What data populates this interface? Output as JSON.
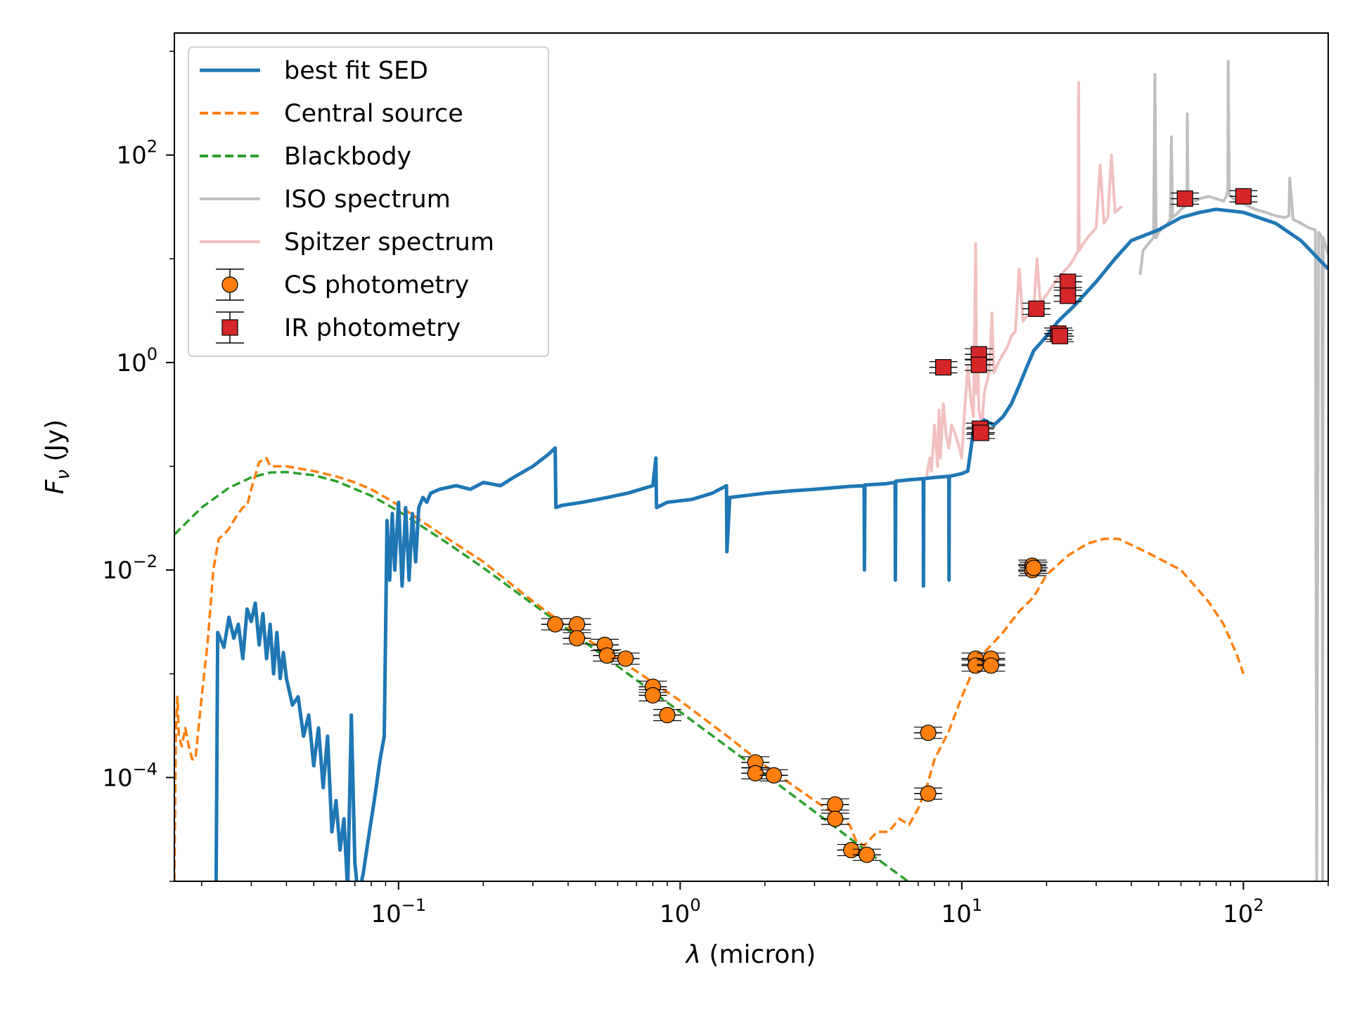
{
  "chart_data": {
    "type": "line",
    "title": "",
    "xlabel_symbol": "λ",
    "xlabel_text": " (micron)",
    "ylabel_symbol": "F",
    "ylabel_sub": "ν",
    "ylabel_text": " (Jy)",
    "xscale": "log",
    "yscale": "log",
    "xlim": [
      0.016,
      200
    ],
    "ylim": [
      1e-05,
      1500
    ],
    "x_ticks": [
      {
        "value": 0.1,
        "base": "10",
        "exp": "−1"
      },
      {
        "value": 1,
        "base": "10",
        "exp": "0"
      },
      {
        "value": 10,
        "base": "10",
        "exp": "1"
      },
      {
        "value": 100,
        "base": "10",
        "exp": "2"
      }
    ],
    "y_ticks": [
      {
        "value": 0.0001,
        "base": "10",
        "exp": "−4"
      },
      {
        "value": 0.01,
        "base": "10",
        "exp": "−2"
      },
      {
        "value": 1,
        "base": "10",
        "exp": "0"
      },
      {
        "value": 100,
        "base": "10",
        "exp": "2"
      }
    ],
    "legend_position": "top-left",
    "colors": {
      "best_fit": "#1f77b4",
      "central": "#ff7f0e",
      "blackbody": "#2ca02c",
      "iso": "#bfbfbf",
      "spitzer": "#f2c0c0",
      "cs_marker": "#ff7f0e",
      "ir_marker": "#d62728"
    },
    "legend": [
      {
        "key": "best_fit",
        "label": "best fit SED",
        "style": "solid"
      },
      {
        "key": "central",
        "label": "Central source",
        "style": "dashed"
      },
      {
        "key": "blackbody",
        "label": "Blackbody",
        "style": "dashed"
      },
      {
        "key": "iso",
        "label": "ISO spectrum",
        "style": "solid"
      },
      {
        "key": "spitzer",
        "label": "Spitzer spectrum",
        "style": "solid"
      },
      {
        "key": "cs",
        "label": "CS photometry",
        "style": "circle"
      },
      {
        "key": "ir",
        "label": "IR photometry",
        "style": "square"
      }
    ],
    "series": [
      {
        "name": "best fit SED",
        "key": "best_fit",
        "x": [
          0.0225,
          0.0228,
          0.024,
          0.025,
          0.026,
          0.027,
          0.028,
          0.029,
          0.03,
          0.031,
          0.032,
          0.033,
          0.034,
          0.035,
          0.036,
          0.037,
          0.038,
          0.039,
          0.04,
          0.042,
          0.044,
          0.046,
          0.048,
          0.05,
          0.052,
          0.054,
          0.056,
          0.058,
          0.06,
          0.062,
          0.064,
          0.066,
          0.068,
          0.07,
          0.072,
          0.075,
          0.078,
          0.082,
          0.086,
          0.089,
          0.091,
          0.093,
          0.095,
          0.097,
          0.1,
          0.103,
          0.106,
          0.109,
          0.112,
          0.115,
          0.118,
          0.122,
          0.126,
          0.13,
          0.14,
          0.16,
          0.18,
          0.2,
          0.23,
          0.26,
          0.3,
          0.34,
          0.36,
          0.362,
          0.38,
          0.45,
          0.55,
          0.65,
          0.8,
          0.82,
          0.824,
          0.9,
          1.1,
          1.3,
          1.46,
          1.465,
          1.5,
          2.0,
          2.5,
          3.0,
          4.0,
          4.5,
          4.51,
          4.53,
          5.4,
          5.8,
          5.81,
          5.83,
          6.5,
          7.3,
          7.31,
          7.33,
          8.0,
          9.0,
          9.01,
          9.03,
          10.0,
          10.5,
          11.0,
          12.0,
          13.0,
          14.0,
          15.0,
          16.0,
          17.0,
          18.0,
          20.0,
          22.0,
          25.0,
          30.0,
          35.0,
          40.0,
          50.0,
          60.0,
          70.0,
          80.0,
          100.0,
          130.0,
          160.0,
          200.0
        ],
        "y": [
          8e-06,
          0.0025,
          0.0018,
          0.0035,
          0.0022,
          0.003,
          0.0014,
          0.0042,
          0.0032,
          0.0048,
          0.0019,
          0.0038,
          0.0014,
          0.003,
          0.001,
          0.0025,
          0.0009,
          0.0016,
          0.0009,
          0.0005,
          0.0006,
          0.00025,
          0.0004,
          0.00013,
          0.0003,
          8e-05,
          0.00025,
          3e-05,
          6e-05,
          2e-05,
          4e-05,
          8e-06,
          0.0004,
          1.5e-05,
          7e-06,
          1.2e-05,
          2.5e-05,
          6e-05,
          0.00015,
          0.00025,
          0.03,
          0.008,
          0.035,
          0.01,
          0.045,
          0.007,
          0.04,
          0.008,
          0.035,
          0.012,
          0.04,
          0.05,
          0.045,
          0.055,
          0.06,
          0.065,
          0.06,
          0.07,
          0.065,
          0.08,
          0.1,
          0.13,
          0.15,
          0.04,
          0.042,
          0.045,
          0.05,
          0.055,
          0.065,
          0.12,
          0.04,
          0.045,
          0.048,
          0.055,
          0.065,
          0.015,
          0.05,
          0.055,
          0.058,
          0.06,
          0.064,
          0.065,
          0.01,
          0.066,
          0.068,
          0.07,
          0.008,
          0.072,
          0.074,
          0.076,
          0.007,
          0.076,
          0.078,
          0.08,
          0.008,
          0.08,
          0.085,
          0.09,
          0.22,
          0.28,
          0.25,
          0.3,
          0.4,
          0.6,
          0.9,
          1.3,
          1.8,
          2.5,
          3.5,
          6,
          10,
          15,
          19,
          25,
          28,
          30,
          28,
          22,
          15,
          8
        ]
      },
      {
        "name": "Central source",
        "key": "central",
        "x": [
          0.016,
          0.0162,
          0.0164,
          0.0166,
          0.017,
          0.0175,
          0.018,
          0.0185,
          0.019,
          0.02,
          0.021,
          0.022,
          0.023,
          0.024,
          0.025,
          0.026,
          0.027,
          0.028,
          0.029,
          0.03,
          0.032,
          0.034,
          0.035,
          0.04,
          0.05,
          0.06,
          0.07,
          0.08,
          0.09,
          0.1,
          0.12,
          0.15,
          0.2,
          0.3,
          0.4,
          0.6,
          1.0,
          1.5,
          2.0,
          3.0,
          3.5,
          4.0,
          4.2,
          4.5,
          5.0,
          5.5,
          6.0,
          6.5,
          7.0,
          7.5,
          8.0,
          9.0,
          10.0,
          11.0,
          12.0,
          14.0,
          16.0,
          18.0,
          20.0,
          24.0,
          28.0,
          32.0,
          36.0,
          45.0,
          60.0,
          75.0,
          85.0,
          95.0,
          100.0
        ],
        "y": [
          1e-05,
          0.0003,
          0.0006,
          0.00025,
          0.0002,
          0.0003,
          0.0002,
          0.00015,
          0.00015,
          0.0006,
          0.002,
          0.01,
          0.02,
          0.022,
          0.025,
          0.03,
          0.035,
          0.04,
          0.042,
          0.06,
          0.11,
          0.12,
          0.1,
          0.1,
          0.09,
          0.08,
          0.07,
          0.06,
          0.05,
          0.042,
          0.03,
          0.02,
          0.012,
          0.005,
          0.0028,
          0.0014,
          0.00055,
          0.00024,
          0.00013,
          6e-05,
          4.5e-05,
          3.5e-05,
          2.5e-05,
          2.2e-05,
          3e-05,
          3e-05,
          4e-05,
          3.5e-05,
          5e-05,
          8e-05,
          0.00015,
          0.00028,
          0.0006,
          0.0011,
          0.0016,
          0.0025,
          0.004,
          0.0055,
          0.009,
          0.014,
          0.018,
          0.02,
          0.02,
          0.015,
          0.01,
          0.005,
          0.003,
          0.0015,
          0.001
        ]
      },
      {
        "name": "Blackbody",
        "key": "blackbody",
        "x": [
          0.016,
          0.02,
          0.025,
          0.03,
          0.035,
          0.04,
          0.05,
          0.06,
          0.08,
          0.1,
          0.15,
          0.2,
          0.3,
          0.5,
          0.7,
          1,
          1.5,
          2,
          3,
          4,
          5,
          6,
          7,
          8.5
        ],
        "y": [
          0.022,
          0.04,
          0.062,
          0.078,
          0.087,
          0.088,
          0.082,
          0.072,
          0.052,
          0.037,
          0.018,
          0.0105,
          0.0047,
          0.0017,
          0.00087,
          0.00043,
          0.00019,
          0.000107,
          4.7e-05,
          2.6e-05,
          1.65e-05,
          1.15e-05,
          8.4e-06,
          5.7e-06
        ]
      },
      {
        "name": "ISO spectrum",
        "key": "iso",
        "x": [
          43,
          44,
          46,
          48,
          48.5,
          49,
          50,
          52,
          54,
          55,
          55.5,
          56,
          58,
          60,
          62,
          63,
          63.2,
          63.6,
          66,
          70,
          75,
          80,
          85,
          87,
          88,
          88.3,
          89,
          92,
          100,
          110,
          120,
          130,
          140,
          145,
          146,
          150,
          160,
          170,
          180,
          182,
          185,
          188,
          190,
          191,
          192,
          195,
          198,
          200
        ],
        "y": [
          7,
          12,
          14,
          16,
          600,
          16,
          18,
          20,
          22,
          24,
          150,
          25,
          27,
          30,
          32,
          34,
          250,
          33,
          35,
          38,
          40,
          38,
          36,
          40,
          45,
          800,
          42,
          38,
          34,
          30,
          28,
          26,
          25,
          26,
          60,
          24,
          22,
          20,
          19,
          1e-05,
          18,
          17,
          16,
          1e-05,
          16,
          14,
          12,
          11
        ]
      },
      {
        "name": "Spitzer spectrum",
        "key": "spitzer",
        "x": [
          7.5,
          7.7,
          7.8,
          8.0,
          8.2,
          8.3,
          8.4,
          8.6,
          8.8,
          9.0,
          9.2,
          9.5,
          9.8,
          10.0,
          10.2,
          10.5,
          10.8,
          11.0,
          11.2,
          11.3,
          11.4,
          11.5,
          11.8,
          12.0,
          12.5,
          12.8,
          13.0,
          13.5,
          14.0,
          14.5,
          15.0,
          15.5,
          16.0,
          16.5,
          17.0,
          17.5,
          18.0,
          18.5,
          19.0,
          20.0,
          21.0,
          22.0,
          23.0,
          24.0,
          25.0,
          25.9,
          26.0,
          26.1,
          27.0,
          28.0,
          30.0,
          31.0,
          32.0,
          33.0,
          34.0,
          35.0,
          36.0,
          37.0
        ],
        "y": [
          0.08,
          0.12,
          0.09,
          0.25,
          0.1,
          0.35,
          0.12,
          0.4,
          0.2,
          0.15,
          0.25,
          0.2,
          0.15,
          0.12,
          0.3,
          0.9,
          0.4,
          0.3,
          14,
          0.5,
          1.2,
          0.35,
          0.25,
          0.5,
          0.8,
          3,
          0.8,
          1.0,
          1.2,
          1.4,
          1.8,
          2,
          8,
          2.5,
          2.8,
          3,
          3.2,
          10,
          3.8,
          4.5,
          5.5,
          6.5,
          7.5,
          8.5,
          10,
          12,
          500,
          12,
          14,
          16,
          20,
          80,
          22,
          25,
          100,
          28,
          30,
          32
        ]
      }
    ],
    "cs_photometry": [
      {
        "x": 0.36,
        "y": 0.003
      },
      {
        "x": 0.43,
        "y": 0.003
      },
      {
        "x": 0.43,
        "y": 0.0022
      },
      {
        "x": 0.54,
        "y": 0.0019
      },
      {
        "x": 0.55,
        "y": 0.0015
      },
      {
        "x": 0.64,
        "y": 0.0014
      },
      {
        "x": 0.8,
        "y": 0.00075
      },
      {
        "x": 0.8,
        "y": 0.00062
      },
      {
        "x": 0.9,
        "y": 0.0004
      },
      {
        "x": 1.85,
        "y": 0.00014
      },
      {
        "x": 1.85,
        "y": 0.00011
      },
      {
        "x": 2.15,
        "y": 0.000105
      },
      {
        "x": 3.55,
        "y": 5.5e-05
      },
      {
        "x": 3.55,
        "y": 4e-05
      },
      {
        "x": 4.05,
        "y": 2e-05
      },
      {
        "x": 4.6,
        "y": 1.8e-05
      },
      {
        "x": 7.6,
        "y": 0.00027
      },
      {
        "x": 7.6,
        "y": 7e-05
      },
      {
        "x": 11.2,
        "y": 0.0014
      },
      {
        "x": 11.2,
        "y": 0.0012
      },
      {
        "x": 12.7,
        "y": 0.0014
      },
      {
        "x": 12.7,
        "y": 0.0012
      },
      {
        "x": 17.8,
        "y": 0.011
      },
      {
        "x": 17.8,
        "y": 0.01
      },
      {
        "x": 18.0,
        "y": 0.0105
      }
    ],
    "ir_photometry": [
      {
        "x": 8.6,
        "y": 0.9
      },
      {
        "x": 11.5,
        "y": 1.2
      },
      {
        "x": 11.5,
        "y": 0.95
      },
      {
        "x": 11.6,
        "y": 0.23
      },
      {
        "x": 11.7,
        "y": 0.21
      },
      {
        "x": 18.4,
        "y": 3.3
      },
      {
        "x": 22.0,
        "y": 1.9
      },
      {
        "x": 22.3,
        "y": 1.8
      },
      {
        "x": 23.8,
        "y": 6.0
      },
      {
        "x": 23.8,
        "y": 4.4
      },
      {
        "x": 62.0,
        "y": 38.0
      },
      {
        "x": 100.0,
        "y": 40.0
      }
    ]
  }
}
